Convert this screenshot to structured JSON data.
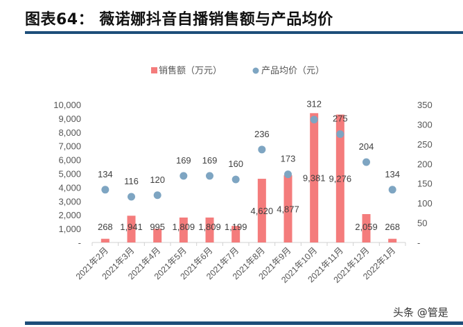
{
  "title": "图表64：  薇诺娜抖音自播销售额与产品均价",
  "watermark": "头条 @管是",
  "chart_data": {
    "type": "bar+scatter",
    "categories": [
      "2021年2月",
      "2021年3月",
      "2021年4月",
      "2021年5月",
      "2021年6月",
      "2021年7月",
      "2021年8月",
      "2021年9月",
      "2021年10月",
      "2021年11月",
      "2021年12月",
      "2022年1月"
    ],
    "series": [
      {
        "name": "销售额（万元）",
        "type": "bar",
        "axis": "left",
        "color": "#f47c7c",
        "values": [
          268,
          1941,
          995,
          1809,
          1809,
          1199,
          4620,
          4877,
          9381,
          9276,
          2059,
          268
        ],
        "labels": [
          "268",
          "1,941",
          "995",
          "1,809",
          "1,809",
          "1,199",
          "4,620",
          "4,877",
          "9,381",
          "9,276",
          "2,059",
          "268"
        ]
      },
      {
        "name": "产品均价（元）",
        "type": "scatter",
        "axis": "right",
        "color": "#7ea5c2",
        "values": [
          134,
          116,
          120,
          169,
          169,
          160,
          236,
          173,
          312,
          275,
          204,
          134
        ]
      }
    ],
    "left_axis": {
      "range": [
        0,
        10000
      ],
      "ticks": [
        "-",
        "1,000",
        "2,000",
        "3,000",
        "4,000",
        "5,000",
        "6,000",
        "7,000",
        "8,000",
        "9,000",
        "10,000"
      ]
    },
    "right_axis": {
      "range": [
        0,
        350
      ],
      "ticks": [
        "-",
        "50",
        "100",
        "150",
        "200",
        "250",
        "300",
        "350"
      ]
    },
    "legend_position": "top",
    "grid": false
  }
}
